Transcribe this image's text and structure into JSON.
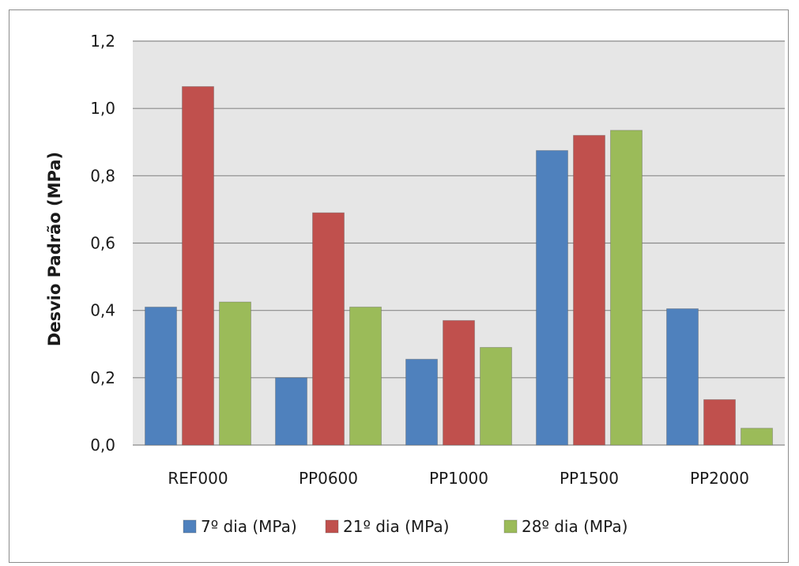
{
  "chart_data": {
    "type": "bar",
    "title": "",
    "xlabel": "",
    "ylabel": "Desvio Padrão (MPa)",
    "categories": [
      "REF000",
      "PP0600",
      "PP1000",
      "PP1500",
      "PP2000"
    ],
    "series": [
      {
        "name": "7º dia (MPa)",
        "color": "#4f81bd",
        "values": [
          0.41,
          0.2,
          0.255,
          0.875,
          0.405
        ]
      },
      {
        "name": "21º dia (MPa)",
        "color": "#c0504d",
        "values": [
          1.065,
          0.69,
          0.37,
          0.92,
          0.135
        ]
      },
      {
        "name": "28º dia (MPa)",
        "color": "#9bbb59",
        "values": [
          0.425,
          0.41,
          0.29,
          0.935,
          0.05
        ]
      }
    ],
    "ylim": [
      0,
      1.2
    ],
    "yticks": [
      "0,0",
      "0,2",
      "0,4",
      "0,6",
      "0,8",
      "1,0",
      "1,2"
    ],
    "yticks_values": [
      0,
      0.2,
      0.4,
      0.6,
      0.8,
      1.0,
      1.2
    ],
    "grid": true,
    "legend_position": "bottom",
    "plot_background": "#e6e6e6"
  }
}
